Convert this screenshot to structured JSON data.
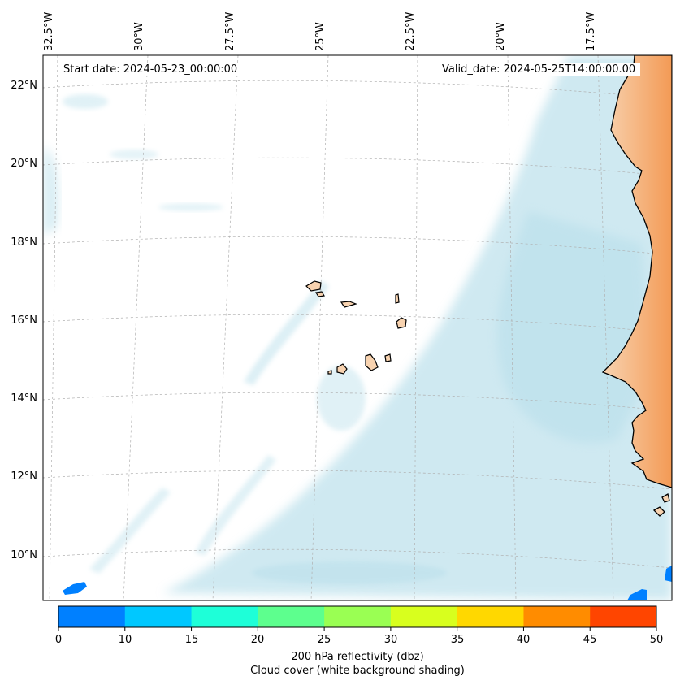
{
  "map": {
    "start_date": "Start date: 2024-05-23_00:00:00",
    "valid_date": "Valid_date: 2024-05-25T14:00:00.00",
    "lon_labels": [
      "32.5°W",
      "30°W",
      "27.5°W",
      "25°W",
      "22.5°W",
      "20°W",
      "17.5°W"
    ],
    "lat_labels": [
      "22°N",
      "20°N",
      "18°N",
      "16°N",
      "14°N",
      "12°N",
      "10°N"
    ],
    "colors": {
      "cloud": "#a9d8e6",
      "land_low": "#f8d3b0",
      "land_high": "#f39a55",
      "coast": "#000000",
      "grid": "#b0b0b0"
    }
  },
  "colorbar": {
    "ticks": [
      "0",
      "10",
      "15",
      "20",
      "25",
      "30",
      "35",
      "40",
      "45",
      "50"
    ],
    "colors": [
      "#0080ff",
      "#00c8ff",
      "#1effd8",
      "#5dff8e",
      "#9aff53",
      "#d8ff1e",
      "#ffd800",
      "#ff8c00",
      "#ff4500"
    ],
    "label_line1": "200 hPa reflectivity (dbz)",
    "label_line2": "Cloud cover (white background shading)"
  }
}
